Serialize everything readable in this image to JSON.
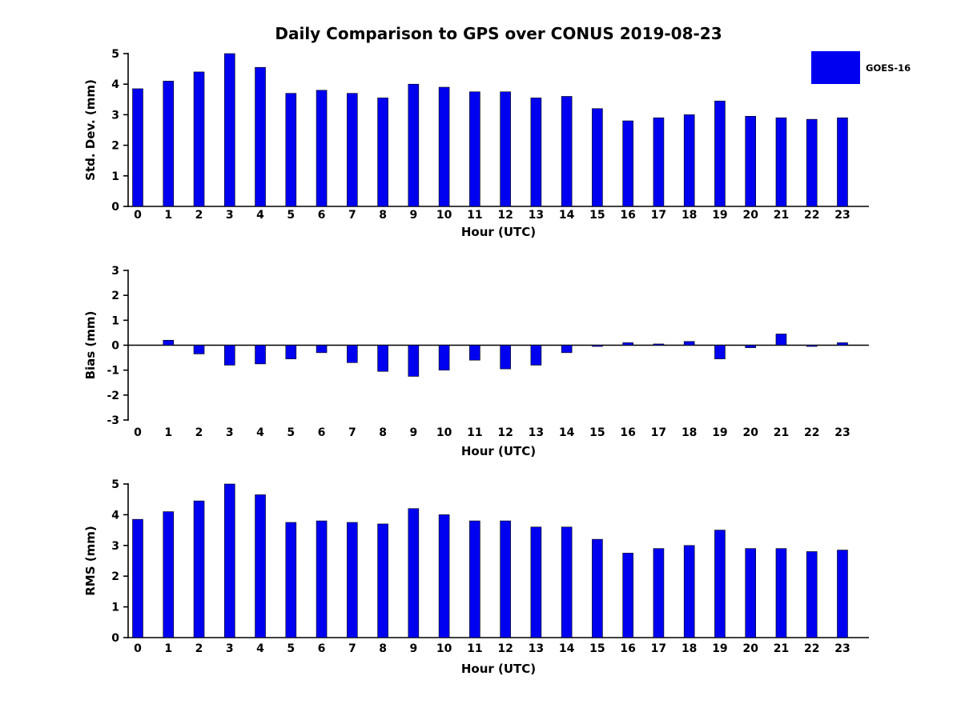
{
  "title": "Daily Comparison to GPS over CONUS 2019-08-23",
  "legend": {
    "label": "GOES-16",
    "color": "#0000f0"
  },
  "bar_color": "#0000f0",
  "bar_edge_color": "#000000",
  "axis_color": "#000000",
  "chart_data": [
    {
      "type": "bar",
      "name": "stddev",
      "title": "",
      "xlabel": "Hour (UTC)",
      "ylabel": "Std. Dev. (mm)",
      "ylim": [
        0,
        5
      ],
      "yticks": [
        0,
        1,
        2,
        3,
        4,
        5
      ],
      "grid": false,
      "legend_position": "top-right",
      "categories": [
        "0",
        "1",
        "2",
        "3",
        "4",
        "5",
        "6",
        "7",
        "8",
        "9",
        "10",
        "11",
        "12",
        "13",
        "14",
        "15",
        "16",
        "17",
        "18",
        "19",
        "20",
        "21",
        "22",
        "23"
      ],
      "series": [
        {
          "name": "GOES-16",
          "values": [
            3.85,
            4.1,
            4.4,
            5.0,
            4.55,
            3.7,
            3.8,
            3.7,
            3.55,
            4.0,
            3.9,
            3.75,
            3.75,
            3.55,
            3.6,
            3.2,
            2.8,
            2.9,
            3.0,
            3.45,
            2.95,
            2.9,
            2.85,
            2.9
          ]
        }
      ]
    },
    {
      "type": "bar",
      "name": "bias",
      "title": "",
      "xlabel": "Hour (UTC)",
      "ylabel": "Bias (mm)",
      "ylim": [
        -3,
        3
      ],
      "yticks": [
        -3,
        -2,
        -1,
        0,
        1,
        2,
        3
      ],
      "grid": false,
      "categories": [
        "0",
        "1",
        "2",
        "3",
        "4",
        "5",
        "6",
        "7",
        "8",
        "9",
        "10",
        "11",
        "12",
        "13",
        "14",
        "15",
        "16",
        "17",
        "18",
        "19",
        "20",
        "21",
        "22",
        "23"
      ],
      "series": [
        {
          "name": "GOES-16",
          "values": [
            0.0,
            0.2,
            -0.35,
            -0.8,
            -0.75,
            -0.55,
            -0.3,
            -0.7,
            -1.05,
            -1.25,
            -1.0,
            -0.6,
            -0.95,
            -0.8,
            -0.3,
            -0.05,
            0.1,
            0.05,
            0.15,
            -0.55,
            -0.1,
            0.45,
            -0.05,
            0.1
          ]
        }
      ]
    },
    {
      "type": "bar",
      "name": "rms",
      "title": "",
      "xlabel": "Hour (UTC)",
      "ylabel": "RMS (mm)",
      "ylim": [
        0,
        5
      ],
      "yticks": [
        0,
        1,
        2,
        3,
        4,
        5
      ],
      "grid": false,
      "categories": [
        "0",
        "1",
        "2",
        "3",
        "4",
        "5",
        "6",
        "7",
        "8",
        "9",
        "10",
        "11",
        "12",
        "13",
        "14",
        "15",
        "16",
        "17",
        "18",
        "19",
        "20",
        "21",
        "22",
        "23"
      ],
      "series": [
        {
          "name": "GOES-16",
          "values": [
            3.85,
            4.1,
            4.45,
            5.0,
            4.65,
            3.75,
            3.8,
            3.75,
            3.7,
            4.2,
            4.0,
            3.8,
            3.8,
            3.6,
            3.6,
            3.2,
            2.75,
            2.9,
            3.0,
            3.5,
            2.9,
            2.9,
            2.8,
            2.85
          ]
        }
      ]
    }
  ]
}
